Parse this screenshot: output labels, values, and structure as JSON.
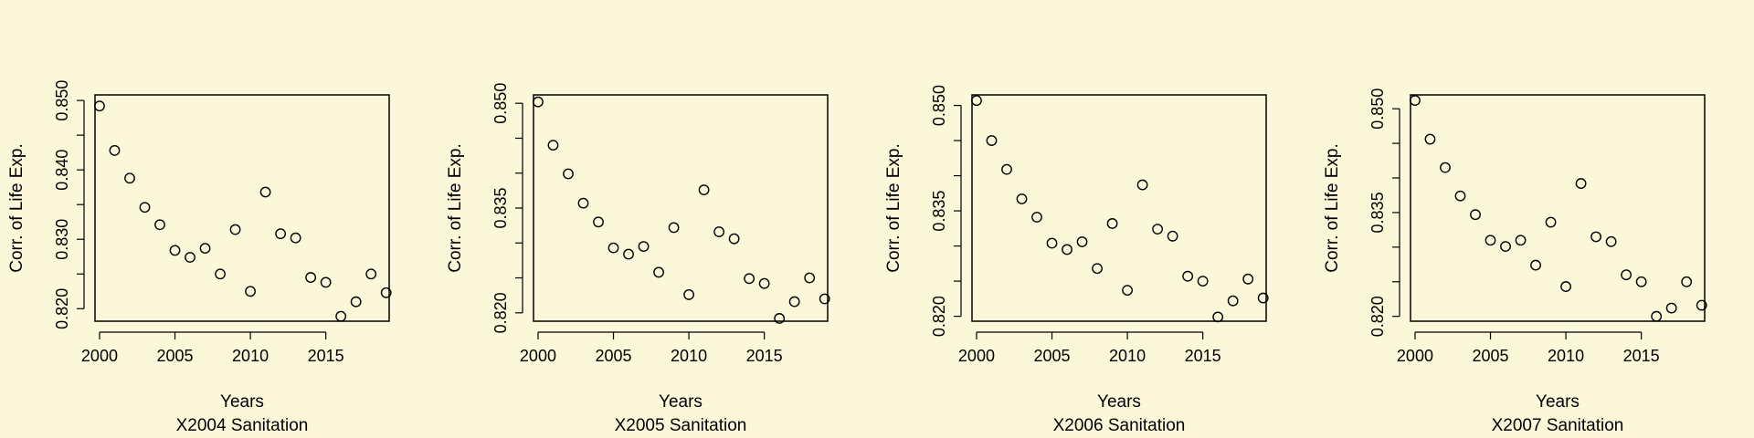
{
  "chart_data": [
    {
      "type": "scatter",
      "xlabel": "Years",
      "ylabel": "Corr. of Life Exp.",
      "subtitle": "X2004 Sanitation",
      "x": [
        2000,
        2001,
        2002,
        2003,
        2004,
        2005,
        2006,
        2007,
        2008,
        2009,
        2010,
        2011,
        2012,
        2013,
        2014,
        2015,
        2016,
        2017,
        2018,
        2019
      ],
      "y": [
        0.8492,
        0.8428,
        0.8388,
        0.8346,
        0.8321,
        0.8284,
        0.8274,
        0.8287,
        0.825,
        0.8314,
        0.8225,
        0.8368,
        0.8308,
        0.8302,
        0.8245,
        0.8238,
        0.8189,
        0.821,
        0.825,
        0.8223
      ],
      "xlim": [
        1999.7,
        2019.2
      ],
      "ylim": [
        0.8182,
        0.8508
      ],
      "xticks": [
        2000,
        2005,
        2010,
        2015
      ],
      "xtick_labels": [
        "2000",
        "2005",
        "2010",
        "2015"
      ],
      "yticks": [
        0.82,
        0.825,
        0.83,
        0.835,
        0.84,
        0.845,
        0.85
      ],
      "ytick_labels": [
        "0.820",
        "",
        "0.830",
        "",
        "0.840",
        "",
        "0.850"
      ],
      "grid": false,
      "legend": "none"
    },
    {
      "type": "scatter",
      "xlabel": "Years",
      "ylabel": "Corr. of Life Exp.",
      "subtitle": "X2005 Sanitation",
      "x": [
        2000,
        2001,
        2002,
        2003,
        2004,
        2005,
        2006,
        2007,
        2008,
        2009,
        2010,
        2011,
        2012,
        2013,
        2014,
        2015,
        2016,
        2017,
        2018,
        2019
      ],
      "y": [
        0.8502,
        0.844,
        0.8399,
        0.8357,
        0.833,
        0.8293,
        0.8284,
        0.8295,
        0.8258,
        0.8322,
        0.8226,
        0.8376,
        0.8316,
        0.8306,
        0.8249,
        0.8242,
        0.8192,
        0.8216,
        0.825,
        0.822
      ],
      "xlim": [
        1999.7,
        2019.2
      ],
      "ylim": [
        0.8188,
        0.8512
      ],
      "xticks": [
        2000,
        2005,
        2010,
        2015
      ],
      "xtick_labels": [
        "2000",
        "2005",
        "2010",
        "2015"
      ],
      "yticks": [
        0.82,
        0.825,
        0.83,
        0.835,
        0.84,
        0.845,
        0.85
      ],
      "ytick_labels": [
        "0.820",
        "",
        "",
        "0.835",
        "",
        "",
        "0.850"
      ],
      "grid": false,
      "legend": "none"
    },
    {
      "type": "scatter",
      "xlabel": "Years",
      "ylabel": "Corr. of Life Exp.",
      "subtitle": "X2006 Sanitation",
      "x": [
        2000,
        2001,
        2002,
        2003,
        2004,
        2005,
        2006,
        2007,
        2008,
        2009,
        2010,
        2011,
        2012,
        2013,
        2014,
        2015,
        2016,
        2017,
        2018,
        2019
      ],
      "y": [
        0.8507,
        0.845,
        0.8409,
        0.8367,
        0.8341,
        0.8304,
        0.8295,
        0.8306,
        0.8268,
        0.8332,
        0.8237,
        0.8387,
        0.8324,
        0.8314,
        0.8257,
        0.825,
        0.8199,
        0.8222,
        0.8253,
        0.8226
      ],
      "xlim": [
        1999.7,
        2019.2
      ],
      "ylim": [
        0.8193,
        0.8515
      ],
      "xticks": [
        2000,
        2005,
        2010,
        2015
      ],
      "xtick_labels": [
        "2000",
        "2005",
        "2010",
        "2015"
      ],
      "yticks": [
        0.82,
        0.825,
        0.83,
        0.835,
        0.84,
        0.845,
        0.85
      ],
      "ytick_labels": [
        "0.820",
        "",
        "",
        "0.835",
        "",
        "",
        "0.850"
      ],
      "grid": false,
      "legend": "none"
    },
    {
      "type": "scatter",
      "xlabel": "Years",
      "ylabel": "Corr. of Life Exp.",
      "subtitle": "X2007 Sanitation",
      "x": [
        2000,
        2001,
        2002,
        2003,
        2004,
        2005,
        2006,
        2007,
        2008,
        2009,
        2010,
        2011,
        2012,
        2013,
        2014,
        2015,
        2016,
        2017,
        2018,
        2019
      ],
      "y": [
        0.8512,
        0.8456,
        0.8415,
        0.8374,
        0.8347,
        0.831,
        0.8301,
        0.831,
        0.8274,
        0.8336,
        0.8243,
        0.8392,
        0.8315,
        0.8308,
        0.826,
        0.825,
        0.82,
        0.8212,
        0.825,
        0.8216
      ],
      "xlim": [
        1999.7,
        2019.2
      ],
      "ylim": [
        0.8193,
        0.852
      ],
      "xticks": [
        2000,
        2005,
        2010,
        2015
      ],
      "xtick_labels": [
        "2000",
        "2005",
        "2010",
        "2015"
      ],
      "yticks": [
        0.82,
        0.825,
        0.83,
        0.835,
        0.84,
        0.845,
        0.85
      ],
      "ytick_labels": [
        "0.820",
        "",
        "",
        "0.835",
        "",
        "",
        "0.850"
      ],
      "grid": false,
      "legend": "none"
    }
  ]
}
